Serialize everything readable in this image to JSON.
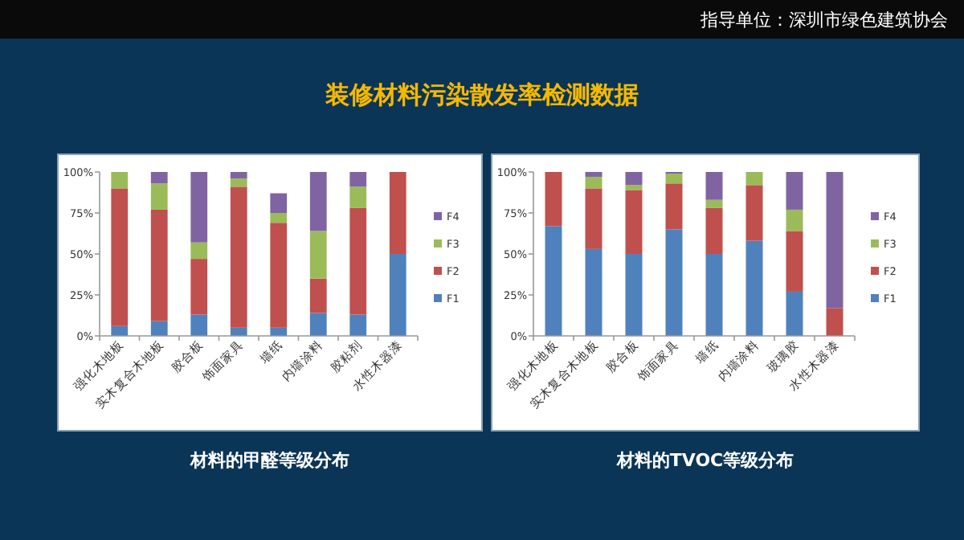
{
  "chart_data": [
    {
      "type": "bar",
      "stacked": true,
      "title": "材料的甲醛等级分布",
      "annotations": [
        "装修材料污染散发率检测数据",
        "指导单位：深圳市绿色建筑协会"
      ],
      "categories": [
        "强化木地板",
        "实木复合木地板",
        "胶合板",
        "饰面家具",
        "墙纸",
        "内墙涂料",
        "胶粘剂",
        "水性木器漆"
      ],
      "ylim": [
        0,
        100
      ],
      "yticks": [
        {
          "value": 0,
          "label": "0%"
        },
        {
          "value": 25,
          "label": "25%"
        },
        {
          "value": 50,
          "label": "50%"
        },
        {
          "value": 75,
          "label": "75%"
        },
        {
          "value": 100,
          "label": "100%"
        }
      ],
      "legend": "right",
      "series": [
        {
          "name": "F1",
          "color": "#4f81bd",
          "values": [
            6,
            9,
            13,
            5,
            5,
            14,
            13,
            50
          ]
        },
        {
          "name": "F2",
          "color": "#c0504d",
          "values": [
            84,
            68,
            34,
            86,
            64,
            21,
            65,
            50
          ]
        },
        {
          "name": "F3",
          "color": "#9bbb59",
          "values": [
            10,
            16,
            10,
            5,
            6,
            29,
            13,
            0
          ]
        },
        {
          "name": "F4",
          "color": "#8064a2",
          "values": [
            0,
            7,
            43,
            4,
            12,
            36,
            9,
            0
          ]
        }
      ]
    },
    {
      "type": "bar",
      "stacked": true,
      "title": "材料的TVOC等级分布",
      "categories": [
        "强化木地板",
        "实木复合木地板",
        "胶合板",
        "饰面家具",
        "墙纸",
        "内墙涂料",
        "玻璃胶",
        "水性木器漆"
      ],
      "ylim": [
        0,
        100
      ],
      "yticks": [
        {
          "value": 0,
          "label": "0%"
        },
        {
          "value": 25,
          "label": "25%"
        },
        {
          "value": 50,
          "label": "50%"
        },
        {
          "value": 75,
          "label": "75%"
        },
        {
          "value": 100,
          "label": "100%"
        }
      ],
      "legend": "right",
      "series": [
        {
          "name": "F1",
          "color": "#4f81bd",
          "values": [
            67,
            53,
            50,
            65,
            50,
            58,
            27,
            0
          ]
        },
        {
          "name": "F2",
          "color": "#c0504d",
          "values": [
            33,
            37,
            39,
            28,
            28,
            34,
            37,
            17
          ]
        },
        {
          "name": "F3",
          "color": "#9bbb59",
          "values": [
            0,
            7,
            3,
            6,
            5,
            8,
            13,
            0
          ]
        },
        {
          "name": "F4",
          "color": "#8064a2",
          "values": [
            0,
            3,
            8,
            1,
            17,
            0,
            23,
            83
          ]
        }
      ]
    }
  ]
}
